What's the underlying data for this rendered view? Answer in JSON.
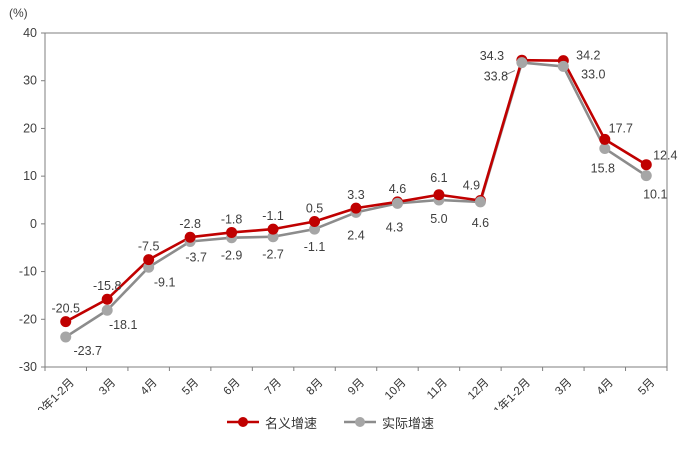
{
  "chart_data": {
    "type": "line",
    "title": "",
    "ylabel": "(%)",
    "xlabel": "",
    "ylim": [
      -30,
      40
    ],
    "ytick_step": 10,
    "grid": false,
    "legend_position": "bottom",
    "categories": [
      "2020年1-2月",
      "3月",
      "4月",
      "5月",
      "6月",
      "7月",
      "8月",
      "9月",
      "10月",
      "11月",
      "12月",
      "2021年1-2月",
      "3月",
      "4月",
      "5月"
    ],
    "series": [
      {
        "name": "名义增速",
        "color": "#C00000",
        "marker_color": "#C00000",
        "values": [
          -20.5,
          -15.8,
          -7.5,
          -2.8,
          -1.8,
          -1.1,
          0.5,
          3.3,
          4.6,
          6.1,
          4.9,
          34.3,
          34.2,
          17.7,
          12.4
        ]
      },
      {
        "name": "实际增速",
        "color": "#8C8C8C",
        "marker_color": "#A6A6A6",
        "values": [
          -23.7,
          -18.1,
          -9.1,
          -3.7,
          -2.9,
          -2.7,
          -1.1,
          2.4,
          4.3,
          5.0,
          4.6,
          33.8,
          33.0,
          15.8,
          10.1
        ]
      }
    ],
    "ytick_labels": [
      "-30",
      "-20",
      "-10",
      "0",
      "10",
      "20",
      "30",
      "40"
    ]
  },
  "legend": {
    "items": [
      {
        "label": "名义增速",
        "line_color": "#C00000",
        "dot_color": "#C00000"
      },
      {
        "label": "实际增速",
        "line_color": "#8C8C8C",
        "dot_color": "#A6A6A6"
      }
    ]
  },
  "colors": {
    "axis": "#7F7F7F",
    "tick_text": "#404040",
    "label_text": "#3F3F3F",
    "background": "#FFFFFF"
  }
}
